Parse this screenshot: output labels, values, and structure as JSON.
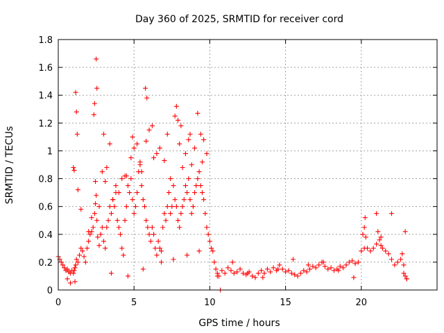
{
  "chart_data": {
    "type": "scatter",
    "title": "Day 360 of 2025, SRMTID for receiver cord",
    "xlabel": "GPS time / hours",
    "ylabel": "SRMTID / TECUs",
    "xlim": [
      0,
      25
    ],
    "ylim": [
      0,
      1.8
    ],
    "xticks": [
      0,
      5,
      10,
      15,
      20
    ],
    "yticks": [
      0,
      0.2,
      0.4,
      0.6,
      0.8,
      1,
      1.2,
      1.4,
      1.6,
      1.8
    ],
    "xtick_labels": [
      "0",
      "5",
      "10",
      "15",
      "20"
    ],
    "ytick_labels": [
      "0",
      "0.2",
      "0.4",
      "0.6",
      "0.8",
      "1",
      "1.2",
      "1.4",
      "1.6",
      "1.8"
    ],
    "grid": true,
    "marker": "+",
    "series": [
      {
        "name": "SRMTID",
        "color": "#ff0000",
        "x": [
          0.0,
          0.1,
          0.2,
          0.3,
          0.4,
          0.5,
          0.6,
          0.7,
          0.8,
          0.9,
          1.0,
          1.05,
          1.1,
          1.15,
          1.2,
          1.3,
          1.4,
          1.5,
          1.6,
          1.7,
          1.8,
          1.9,
          2.0,
          2.1,
          2.2,
          2.3,
          2.4,
          2.45,
          2.5,
          2.55,
          2.6,
          2.7,
          2.8,
          2.9,
          3.0,
          3.1,
          3.2,
          3.3,
          3.4,
          3.5,
          3.6,
          3.7,
          3.8,
          3.9,
          4.0,
          4.1,
          4.2,
          4.3,
          4.4,
          4.5,
          4.6,
          4.7,
          4.8,
          4.9,
          5.0,
          5.1,
          5.2,
          5.3,
          5.4,
          5.5,
          5.6,
          5.7,
          5.8,
          5.9,
          6.0,
          6.1,
          6.2,
          6.3,
          6.4,
          6.5,
          6.6,
          6.7,
          6.8,
          6.9,
          7.0,
          7.1,
          7.2,
          7.3,
          7.4,
          7.5,
          7.6,
          7.7,
          7.8,
          7.9,
          8.0,
          8.1,
          8.2,
          8.3,
          8.4,
          8.5,
          8.6,
          8.7,
          8.8,
          8.9,
          9.0,
          9.1,
          9.2,
          9.3,
          9.4,
          9.5,
          9.6,
          9.7,
          9.8,
          9.9,
          10.0,
          10.1,
          10.2,
          10.3,
          10.4,
          10.5,
          10.6,
          10.8,
          11.0,
          11.2,
          11.4,
          11.6,
          11.8,
          12.0,
          12.2,
          12.4,
          12.6,
          12.8,
          13.0,
          13.2,
          13.4,
          13.6,
          13.8,
          14.0,
          14.2,
          14.4,
          14.6,
          14.8,
          15.0,
          15.2,
          15.4,
          15.6,
          15.8,
          16.0,
          16.2,
          16.4,
          16.6,
          16.8,
          17.0,
          17.2,
          17.4,
          17.6,
          17.8,
          18.0,
          18.2,
          18.4,
          18.6,
          18.8,
          19.0,
          19.2,
          19.4,
          19.6,
          19.8,
          20.0,
          20.1,
          20.2,
          20.3,
          20.4,
          20.6,
          20.8,
          21.0,
          21.2,
          21.3,
          21.4,
          21.6,
          21.8,
          22.0,
          22.2,
          22.4,
          22.6,
          22.7,
          22.8,
          22.9,
          23.0,
          1.1,
          1.15,
          1.2,
          1.25,
          1.0,
          1.05,
          2.45,
          2.5,
          2.55,
          2.4,
          2.35,
          5.8,
          5.75,
          5.85,
          7.7,
          7.8,
          7.9,
          8.1,
          8.7,
          9.2,
          6.0,
          6.2,
          3.0,
          3.2,
          4.5,
          4.8,
          4.9,
          5.0,
          5.2,
          5.4,
          6.5,
          6.7,
          7.0,
          7.2,
          8.0,
          8.4,
          8.6,
          9.0,
          9.4,
          9.6,
          9.8,
          3.4,
          3.8,
          4.2,
          1.3,
          1.5,
          2.0,
          2.2,
          2.7,
          3.1,
          3.6,
          4.0,
          4.4,
          5.5,
          6.3,
          7.4,
          8.2,
          8.8,
          9.5,
          2.9,
          3.5,
          4.6,
          5.6,
          6.8,
          7.6,
          8.5,
          9.3,
          20.2,
          20.25,
          21.0,
          21.1,
          21.3,
          22.0,
          22.9,
          23.0,
          22.8,
          0.8,
          0.6,
          10.5,
          10.7,
          11.5,
          12.5,
          13.5,
          14.5,
          15.5,
          16.5,
          17.5,
          18.5,
          19.5
        ],
        "y": [
          0.24,
          0.22,
          0.2,
          0.18,
          0.16,
          0.14,
          0.15,
          0.13,
          0.12,
          0.14,
          0.12,
          0.14,
          0.16,
          0.18,
          0.22,
          0.2,
          0.25,
          0.3,
          0.28,
          0.24,
          0.2,
          0.3,
          0.35,
          0.4,
          0.42,
          0.45,
          0.55,
          0.62,
          0.68,
          0.5,
          0.38,
          0.32,
          0.4,
          0.45,
          0.35,
          0.3,
          0.45,
          0.5,
          0.6,
          0.55,
          0.65,
          0.6,
          0.7,
          0.5,
          0.45,
          0.4,
          0.3,
          0.25,
          0.5,
          0.6,
          0.75,
          0.7,
          0.8,
          0.65,
          0.55,
          0.6,
          0.7,
          0.85,
          0.9,
          0.75,
          0.65,
          0.6,
          0.5,
          0.45,
          0.4,
          0.35,
          0.45,
          0.4,
          0.3,
          0.25,
          0.35,
          0.3,
          0.28,
          0.45,
          0.55,
          0.5,
          0.6,
          0.7,
          0.55,
          0.6,
          0.75,
          0.65,
          0.6,
          0.5,
          0.45,
          0.55,
          0.6,
          0.65,
          0.75,
          0.7,
          0.8,
          0.65,
          0.55,
          0.6,
          0.7,
          0.75,
          0.8,
          0.85,
          0.75,
          0.7,
          0.65,
          0.55,
          0.45,
          0.4,
          0.35,
          0.3,
          0.28,
          0.2,
          0.15,
          0.12,
          0.1,
          0.14,
          0.12,
          0.16,
          0.14,
          0.12,
          0.13,
          0.15,
          0.12,
          0.11,
          0.13,
          0.1,
          0.09,
          0.12,
          0.14,
          0.12,
          0.15,
          0.13,
          0.16,
          0.14,
          0.18,
          0.15,
          0.13,
          0.14,
          0.12,
          0.11,
          0.1,
          0.12,
          0.14,
          0.13,
          0.15,
          0.17,
          0.16,
          0.18,
          0.2,
          0.17,
          0.15,
          0.16,
          0.14,
          0.15,
          0.17,
          0.16,
          0.18,
          0.2,
          0.21,
          0.19,
          0.2,
          0.28,
          0.4,
          0.45,
          0.38,
          0.3,
          0.28,
          0.3,
          0.33,
          0.36,
          0.32,
          0.3,
          0.28,
          0.26,
          0.22,
          0.18,
          0.2,
          0.22,
          0.26,
          0.18,
          0.1,
          0.08,
          0.06,
          1.42,
          1.28,
          1.12,
          0.88,
          0.86,
          0.78,
          1.66,
          1.45,
          1.34,
          1.26,
          1.07,
          1.45,
          1.38,
          1.25,
          1.32,
          1.22,
          1.18,
          1.12,
          1.27,
          1.15,
          1.18,
          1.12,
          0.88,
          0.82,
          0.95,
          1.1,
          1.02,
          1.05,
          0.92,
          0.98,
          1.02,
          0.93,
          1.12,
          1.05,
          0.98,
          1.08,
          1.02,
          1.12,
          1.08,
          0.98,
          1.05,
          0.75,
          0.8,
          0.72,
          0.58,
          0.42,
          0.52,
          0.6,
          0.78,
          0.65,
          0.7,
          0.82,
          0.85,
          0.95,
          0.8,
          0.88,
          0.9,
          0.92,
          0.85,
          0.12,
          0.1,
          0.15,
          0.2,
          0.22,
          0.25,
          0.28,
          0.3,
          0.52,
          0.55,
          0.42,
          0.38,
          0.55,
          0.42,
          0.08,
          0.12,
          0.05,
          0.08,
          0.1,
          0.0,
          0.2,
          0.12,
          0.09,
          0.15,
          0.22,
          0.18,
          0.2,
          0.14,
          0.09
        ]
      }
    ]
  }
}
